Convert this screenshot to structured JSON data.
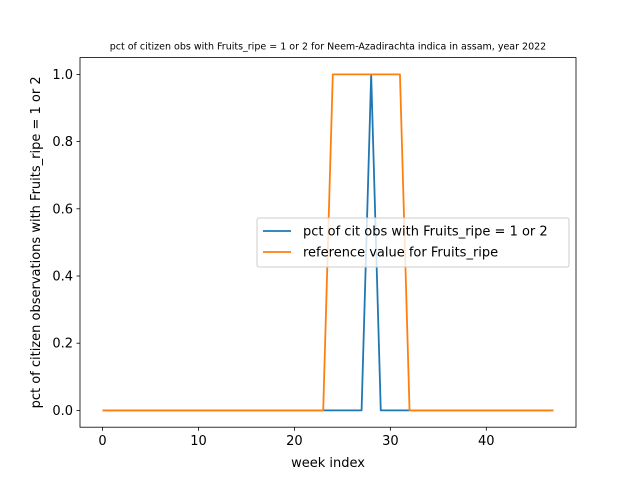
{
  "chart_data": {
    "type": "line",
    "title": "pct of citizen obs with Fruits_ripe = 1 or 2 for Neem-Azadirachta indica in assam, year 2022",
    "xlabel": "week index",
    "ylabel": "pct of citizen observations with Fruits_ripe = 1 or 2",
    "xlim": [
      -2.35,
      49.35
    ],
    "ylim": [
      -0.05,
      1.05
    ],
    "xticks": [
      0,
      10,
      20,
      30,
      40
    ],
    "yticks": [
      0.0,
      0.2,
      0.4,
      0.6,
      0.8,
      1.0
    ],
    "xtick_labels": [
      "0",
      "10",
      "20",
      "30",
      "40"
    ],
    "ytick_labels": [
      "0.0",
      "0.2",
      "0.4",
      "0.6",
      "0.8",
      "1.0"
    ],
    "grid": false,
    "legend_position": "center-right",
    "series": [
      {
        "name": "pct of cit obs with Fruits_ripe = 1 or 2",
        "color": "#1f77b4",
        "x": [
          0,
          1,
          2,
          3,
          4,
          5,
          6,
          7,
          8,
          9,
          10,
          11,
          12,
          13,
          14,
          15,
          16,
          17,
          18,
          19,
          20,
          21,
          22,
          23,
          24,
          25,
          26,
          27,
          28,
          29,
          30,
          31,
          32,
          33,
          34,
          35,
          36,
          37,
          38,
          39,
          40,
          41,
          42,
          43,
          44,
          45,
          46,
          47
        ],
        "y": [
          0,
          0,
          0,
          0,
          0,
          0,
          0,
          0,
          0,
          0,
          0,
          0,
          0,
          0,
          0,
          0,
          0,
          0,
          0,
          0,
          0,
          0,
          0,
          0,
          0,
          0,
          0,
          0,
          1,
          0,
          0,
          0,
          0,
          0,
          0,
          0,
          0,
          0,
          0,
          0,
          0,
          0,
          0,
          0,
          0,
          0,
          0,
          0
        ]
      },
      {
        "name": "reference value for Fruits_ripe",
        "color": "#ff7f0e",
        "x": [
          0,
          1,
          2,
          3,
          4,
          5,
          6,
          7,
          8,
          9,
          10,
          11,
          12,
          13,
          14,
          15,
          16,
          17,
          18,
          19,
          20,
          21,
          22,
          23,
          24,
          25,
          26,
          27,
          28,
          29,
          30,
          31,
          32,
          33,
          34,
          35,
          36,
          37,
          38,
          39,
          40,
          41,
          42,
          43,
          44,
          45,
          46,
          47
        ],
        "y": [
          0,
          0,
          0,
          0,
          0,
          0,
          0,
          0,
          0,
          0,
          0,
          0,
          0,
          0,
          0,
          0,
          0,
          0,
          0,
          0,
          0,
          0,
          0,
          0,
          1,
          1,
          1,
          1,
          1,
          1,
          1,
          1,
          0,
          0,
          0,
          0,
          0,
          0,
          0,
          0,
          0,
          0,
          0,
          0,
          0,
          0,
          0,
          0
        ]
      }
    ]
  }
}
